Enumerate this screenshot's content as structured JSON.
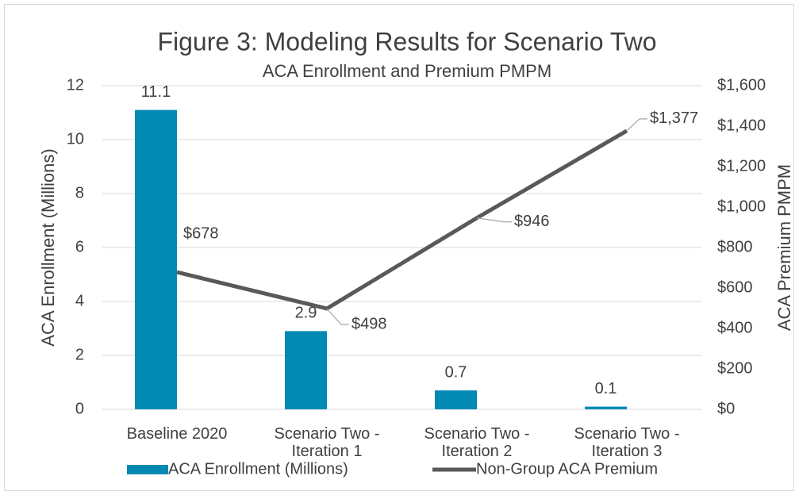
{
  "chart_data": {
    "type": "bar_line",
    "title": "Figure 3: Modeling Results for Scenario Two",
    "subtitle": "ACA Enrollment and Premium PMPM",
    "y_label": "ACA Enrollment (Millions)",
    "y2_label": "ACA Premium PMPM",
    "categories": [
      "Baseline 2020",
      "Scenario Two - Iteration 1",
      "Scenario Two - Iteration 2",
      "Scenario Two - Iteration 3"
    ],
    "series": [
      {
        "name": "ACA Enrollment (Millions)",
        "type": "bar",
        "color": "#0089b3",
        "values": [
          11.1,
          2.9,
          0.7,
          0.1
        ]
      },
      {
        "name": "Non-Group ACA Premium",
        "type": "line",
        "axis": "y2",
        "color": "#595959",
        "values": [
          678,
          498,
          946,
          1377
        ],
        "value_labels": [
          "$678",
          "$498",
          "$946",
          "$1,377"
        ]
      }
    ],
    "ylim": [
      0,
      12
    ],
    "yticks": [
      0,
      2,
      4,
      6,
      8,
      10,
      12
    ],
    "y2lim": [
      0,
      1600
    ],
    "y2ticks": [
      {
        "value": 0,
        "label": "$0"
      },
      {
        "value": 200,
        "label": "$200"
      },
      {
        "value": 400,
        "label": "$400"
      },
      {
        "value": 600,
        "label": "$600"
      },
      {
        "value": 800,
        "label": "$800"
      },
      {
        "value": 1000,
        "label": "$1,000"
      },
      {
        "value": 1200,
        "label": "$1,200"
      },
      {
        "value": 1400,
        "label": "$1,400"
      },
      {
        "value": 1600,
        "label": "$1,600"
      }
    ],
    "grid": true,
    "legend": "bottom"
  }
}
